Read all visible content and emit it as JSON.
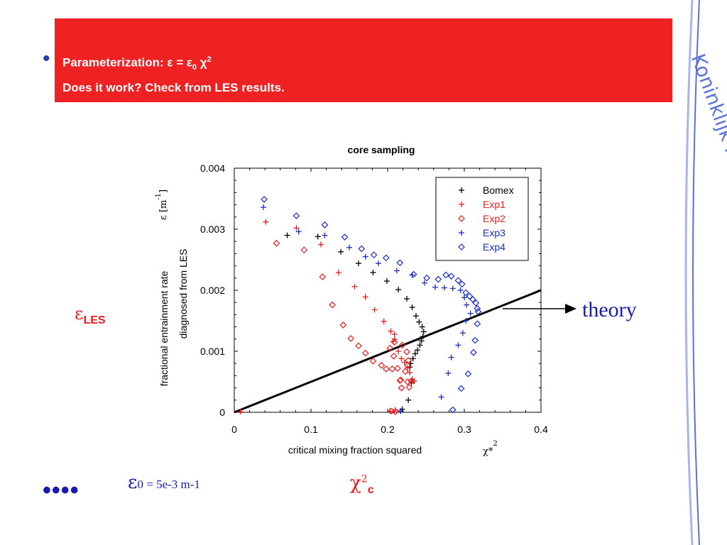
{
  "header": {
    "line1": "Parameterization: ε = ε0 χ2",
    "line1_parts": {
      "label": "Parameterization: ",
      "eps": "ε",
      "eq": " = ",
      "eps0": "ε",
      "eps0_sub": "0",
      "chi": " χ",
      "chi_sup": "2"
    },
    "line2": "Does it work? Check from LES results.",
    "bullet": "•",
    "band_color": "#ee2222"
  },
  "banner": {
    "text": "Koninklijk Nederlands Meteorologisch Instituut",
    "color": "#5a72d8"
  },
  "annotations": {
    "eps_les_symbol": "ε",
    "eps_les_sub": "LES",
    "theory": "theory",
    "eps0_symbol": "ε",
    "eps0_rest": "0  = 5e-3 m-1",
    "chi_symbol": "χ",
    "chi_sup": "2",
    "chi_sub": "c",
    "dots": "••••"
  },
  "chart_data": {
    "type": "scatter",
    "title": "core sampling",
    "xlabel": "critical mixing fraction squared",
    "xlabel_symbol": "χ*",
    "xlabel_symbol_sup": "2",
    "ylabel_line1": "fractional entrainment rate",
    "ylabel_line2": "diagnosed from LES",
    "ylabel_symbol": "ε  [m",
    "ylabel_symbol_sup": "-1",
    "ylabel_symbol_close": "]",
    "xlim": [
      0,
      0.4
    ],
    "ylim": [
      0,
      0.004
    ],
    "xticks": [
      0,
      0.1,
      0.2,
      0.3,
      0.4
    ],
    "xtick_labels": [
      "0",
      "0.1",
      "0.2",
      "0.3",
      "0.4"
    ],
    "yticks": [
      0,
      0.001,
      0.002,
      0.003,
      0.004
    ],
    "ytick_labels": [
      "0",
      "0.001",
      "0.002",
      "0.003",
      "0.004"
    ],
    "grid": false,
    "legend_position": "top-right",
    "series": [
      {
        "name": "Bomex",
        "marker": "plus",
        "color": "#000000",
        "points": [
          [
            0.069,
            0.0029
          ],
          [
            0.109,
            0.00288
          ],
          [
            0.139,
            0.00263
          ],
          [
            0.162,
            0.00244
          ],
          [
            0.181,
            0.00229
          ],
          [
            0.199,
            0.00215
          ],
          [
            0.214,
            0.00201
          ],
          [
            0.225,
            0.00186
          ],
          [
            0.232,
            0.00172
          ],
          [
            0.237,
            0.00158
          ],
          [
            0.241,
            0.00148
          ],
          [
            0.245,
            0.0014
          ],
          [
            0.247,
            0.00132
          ],
          [
            0.246,
            0.00124
          ],
          [
            0.244,
            0.00117
          ],
          [
            0.242,
            0.0011
          ],
          [
            0.239,
            0.00102
          ],
          [
            0.236,
            0.00096
          ],
          [
            0.233,
            0.00088
          ],
          [
            0.23,
            0.0008
          ],
          [
            0.229,
            0.00074
          ],
          [
            0.232,
            0.00054
          ],
          [
            0.231,
            0.00048
          ],
          [
            0.227,
            0.0002
          ],
          [
            0.219,
            5e-05
          ],
          [
            0.217,
            2e-05
          ]
        ]
      },
      {
        "name": "Exp1",
        "marker": "plus",
        "color": "#ee1c1c",
        "points": [
          [
            0.041,
            0.00312
          ],
          [
            0.081,
            0.00302
          ],
          [
            0.113,
            0.00275
          ],
          [
            0.136,
            0.00229
          ],
          [
            0.157,
            0.00206
          ],
          [
            0.171,
            0.00189
          ],
          [
            0.183,
            0.00168
          ],
          [
            0.195,
            0.00149
          ],
          [
            0.204,
            0.00133
          ],
          [
            0.209,
            0.00128
          ],
          [
            0.209,
            0.0012
          ],
          [
            0.207,
            0.00116
          ],
          [
            0.214,
            0.001
          ],
          [
            0.218,
            0.00088
          ],
          [
            0.222,
            0.00082
          ],
          [
            0.226,
            0.00073
          ],
          [
            0.229,
            0.00065
          ],
          [
            0.232,
            0.00054
          ],
          [
            0.235,
            0.00051
          ],
          [
            0.21,
            4e-05
          ],
          [
            0.203,
            2e-05
          ],
          [
            0.008,
            1e-05
          ]
        ]
      },
      {
        "name": "Exp2",
        "marker": "diamond",
        "color": "#ee1c1c",
        "points": [
          [
            0.055,
            0.00277
          ],
          [
            0.091,
            0.00266
          ],
          [
            0.115,
            0.00222
          ],
          [
            0.128,
            0.00176
          ],
          [
            0.142,
            0.00143
          ],
          [
            0.152,
            0.00121
          ],
          [
            0.162,
            0.00109
          ],
          [
            0.171,
            0.00097
          ],
          [
            0.181,
            0.00084
          ],
          [
            0.192,
            0.00077
          ],
          [
            0.198,
            0.00071
          ],
          [
            0.206,
            0.00071
          ],
          [
            0.213,
            0.00072
          ],
          [
            0.208,
            0.00092
          ],
          [
            0.203,
            0.00105
          ],
          [
            0.209,
            0.00115
          ],
          [
            0.219,
            0.0011
          ],
          [
            0.225,
            0.00099
          ],
          [
            0.227,
            0.00085
          ],
          [
            0.226,
            0.00077
          ],
          [
            0.223,
            0.00067
          ],
          [
            0.217,
            0.00053
          ],
          [
            0.216,
            0.00052
          ],
          [
            0.226,
            0.0005
          ],
          [
            0.231,
            0.00051
          ],
          [
            0.228,
            0.00041
          ],
          [
            0.218,
            0.0004
          ],
          [
            0.205,
            2e-05
          ],
          [
            0.21,
            1e-05
          ]
        ]
      },
      {
        "name": "Exp3",
        "marker": "plus",
        "color": "#1a2ec8",
        "points": [
          [
            0.038,
            0.00336
          ],
          [
            0.084,
            0.00296
          ],
          [
            0.118,
            0.0029
          ],
          [
            0.15,
            0.0027
          ],
          [
            0.171,
            0.00255
          ],
          [
            0.188,
            0.00244
          ],
          [
            0.212,
            0.00232
          ],
          [
            0.232,
            0.00225
          ],
          [
            0.248,
            0.00212
          ],
          [
            0.262,
            0.00205
          ],
          [
            0.274,
            0.00204
          ],
          [
            0.285,
            0.00203
          ],
          [
            0.295,
            0.002
          ],
          [
            0.3,
            0.00188
          ],
          [
            0.303,
            0.00176
          ],
          [
            0.308,
            0.00162
          ],
          [
            0.302,
            0.0015
          ],
          [
            0.298,
            0.0013
          ],
          [
            0.292,
            0.0011
          ],
          [
            0.283,
            0.0009
          ],
          [
            0.279,
            0.00064
          ],
          [
            0.27,
            0.00025
          ],
          [
            0.217,
            2e-05
          ]
        ]
      },
      {
        "name": "Exp4",
        "marker": "diamond",
        "color": "#1a2ec8",
        "points": [
          [
            0.039,
            0.00349
          ],
          [
            0.081,
            0.00322
          ],
          [
            0.118,
            0.00307
          ],
          [
            0.144,
            0.00287
          ],
          [
            0.166,
            0.00268
          ],
          [
            0.182,
            0.00258
          ],
          [
            0.198,
            0.00253
          ],
          [
            0.216,
            0.00245
          ],
          [
            0.234,
            0.00226
          ],
          [
            0.251,
            0.0022
          ],
          [
            0.266,
            0.00218
          ],
          [
            0.276,
            0.00225
          ],
          [
            0.283,
            0.00223
          ],
          [
            0.292,
            0.00216
          ],
          [
            0.297,
            0.0021
          ],
          [
            0.302,
            0.00196
          ],
          [
            0.307,
            0.0019
          ],
          [
            0.311,
            0.00185
          ],
          [
            0.315,
            0.00179
          ],
          [
            0.317,
            0.0017
          ],
          [
            0.318,
            0.00165
          ],
          [
            0.317,
            0.00145
          ],
          [
            0.314,
            0.00118
          ],
          [
            0.312,
            0.00098
          ],
          [
            0.305,
            0.00063
          ],
          [
            0.296,
            0.00039
          ],
          [
            0.285,
            4e-05
          ]
        ]
      }
    ],
    "theory_line": {
      "points": [
        [
          0,
          0
        ],
        [
          0.4,
          0.002
        ]
      ],
      "color": "#000000"
    }
  }
}
